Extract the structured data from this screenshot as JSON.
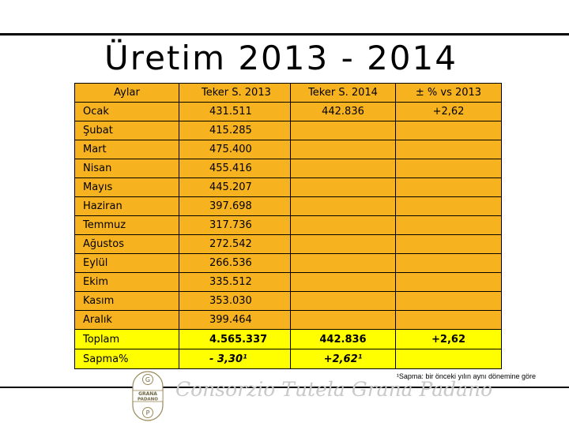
{
  "title": "Üretim 2013 - 2014",
  "table": {
    "headers": [
      "Aylar",
      "Teker S. 2013",
      "Teker S. 2014",
      "± % vs 2013"
    ],
    "rows": [
      [
        "Ocak",
        "431.511",
        "442.836",
        "+2,62"
      ],
      [
        "Şubat",
        "415.285",
        "",
        ""
      ],
      [
        "Mart",
        "475.400",
        "",
        ""
      ],
      [
        "Nisan",
        "455.416",
        "",
        ""
      ],
      [
        "Mayıs",
        "445.207",
        "",
        ""
      ],
      [
        "Haziran",
        "397.698",
        "",
        ""
      ],
      [
        "Temmuz",
        "317.736",
        "",
        ""
      ],
      [
        "Ağustos",
        "272.542",
        "",
        ""
      ],
      [
        "Eylül",
        "266.536",
        "",
        ""
      ],
      [
        "Ekim",
        "335.512",
        "",
        ""
      ],
      [
        "Kasım",
        "353.030",
        "",
        ""
      ],
      [
        "Aralık",
        "399.464",
        "",
        ""
      ]
    ],
    "total": [
      "Toplam",
      "4.565.337",
      "442.836",
      "+2,62"
    ],
    "deviation": [
      "Sapma%",
      "- 3,30¹",
      "+2,62¹",
      ""
    ]
  },
  "footnote": "¹Sapma: bir önceki yılın aynı dönemine göre",
  "logo": {
    "top": "G",
    "line1": "GRANA",
    "line2": "PADANO",
    "bottom": "P"
  },
  "consortium": "Consorzio Tutela Grana Padano",
  "colors": {
    "cell_orange": "#f7b21f",
    "cell_yellow": "#ffff00",
    "watermark_grey": "#c9c9c9"
  }
}
